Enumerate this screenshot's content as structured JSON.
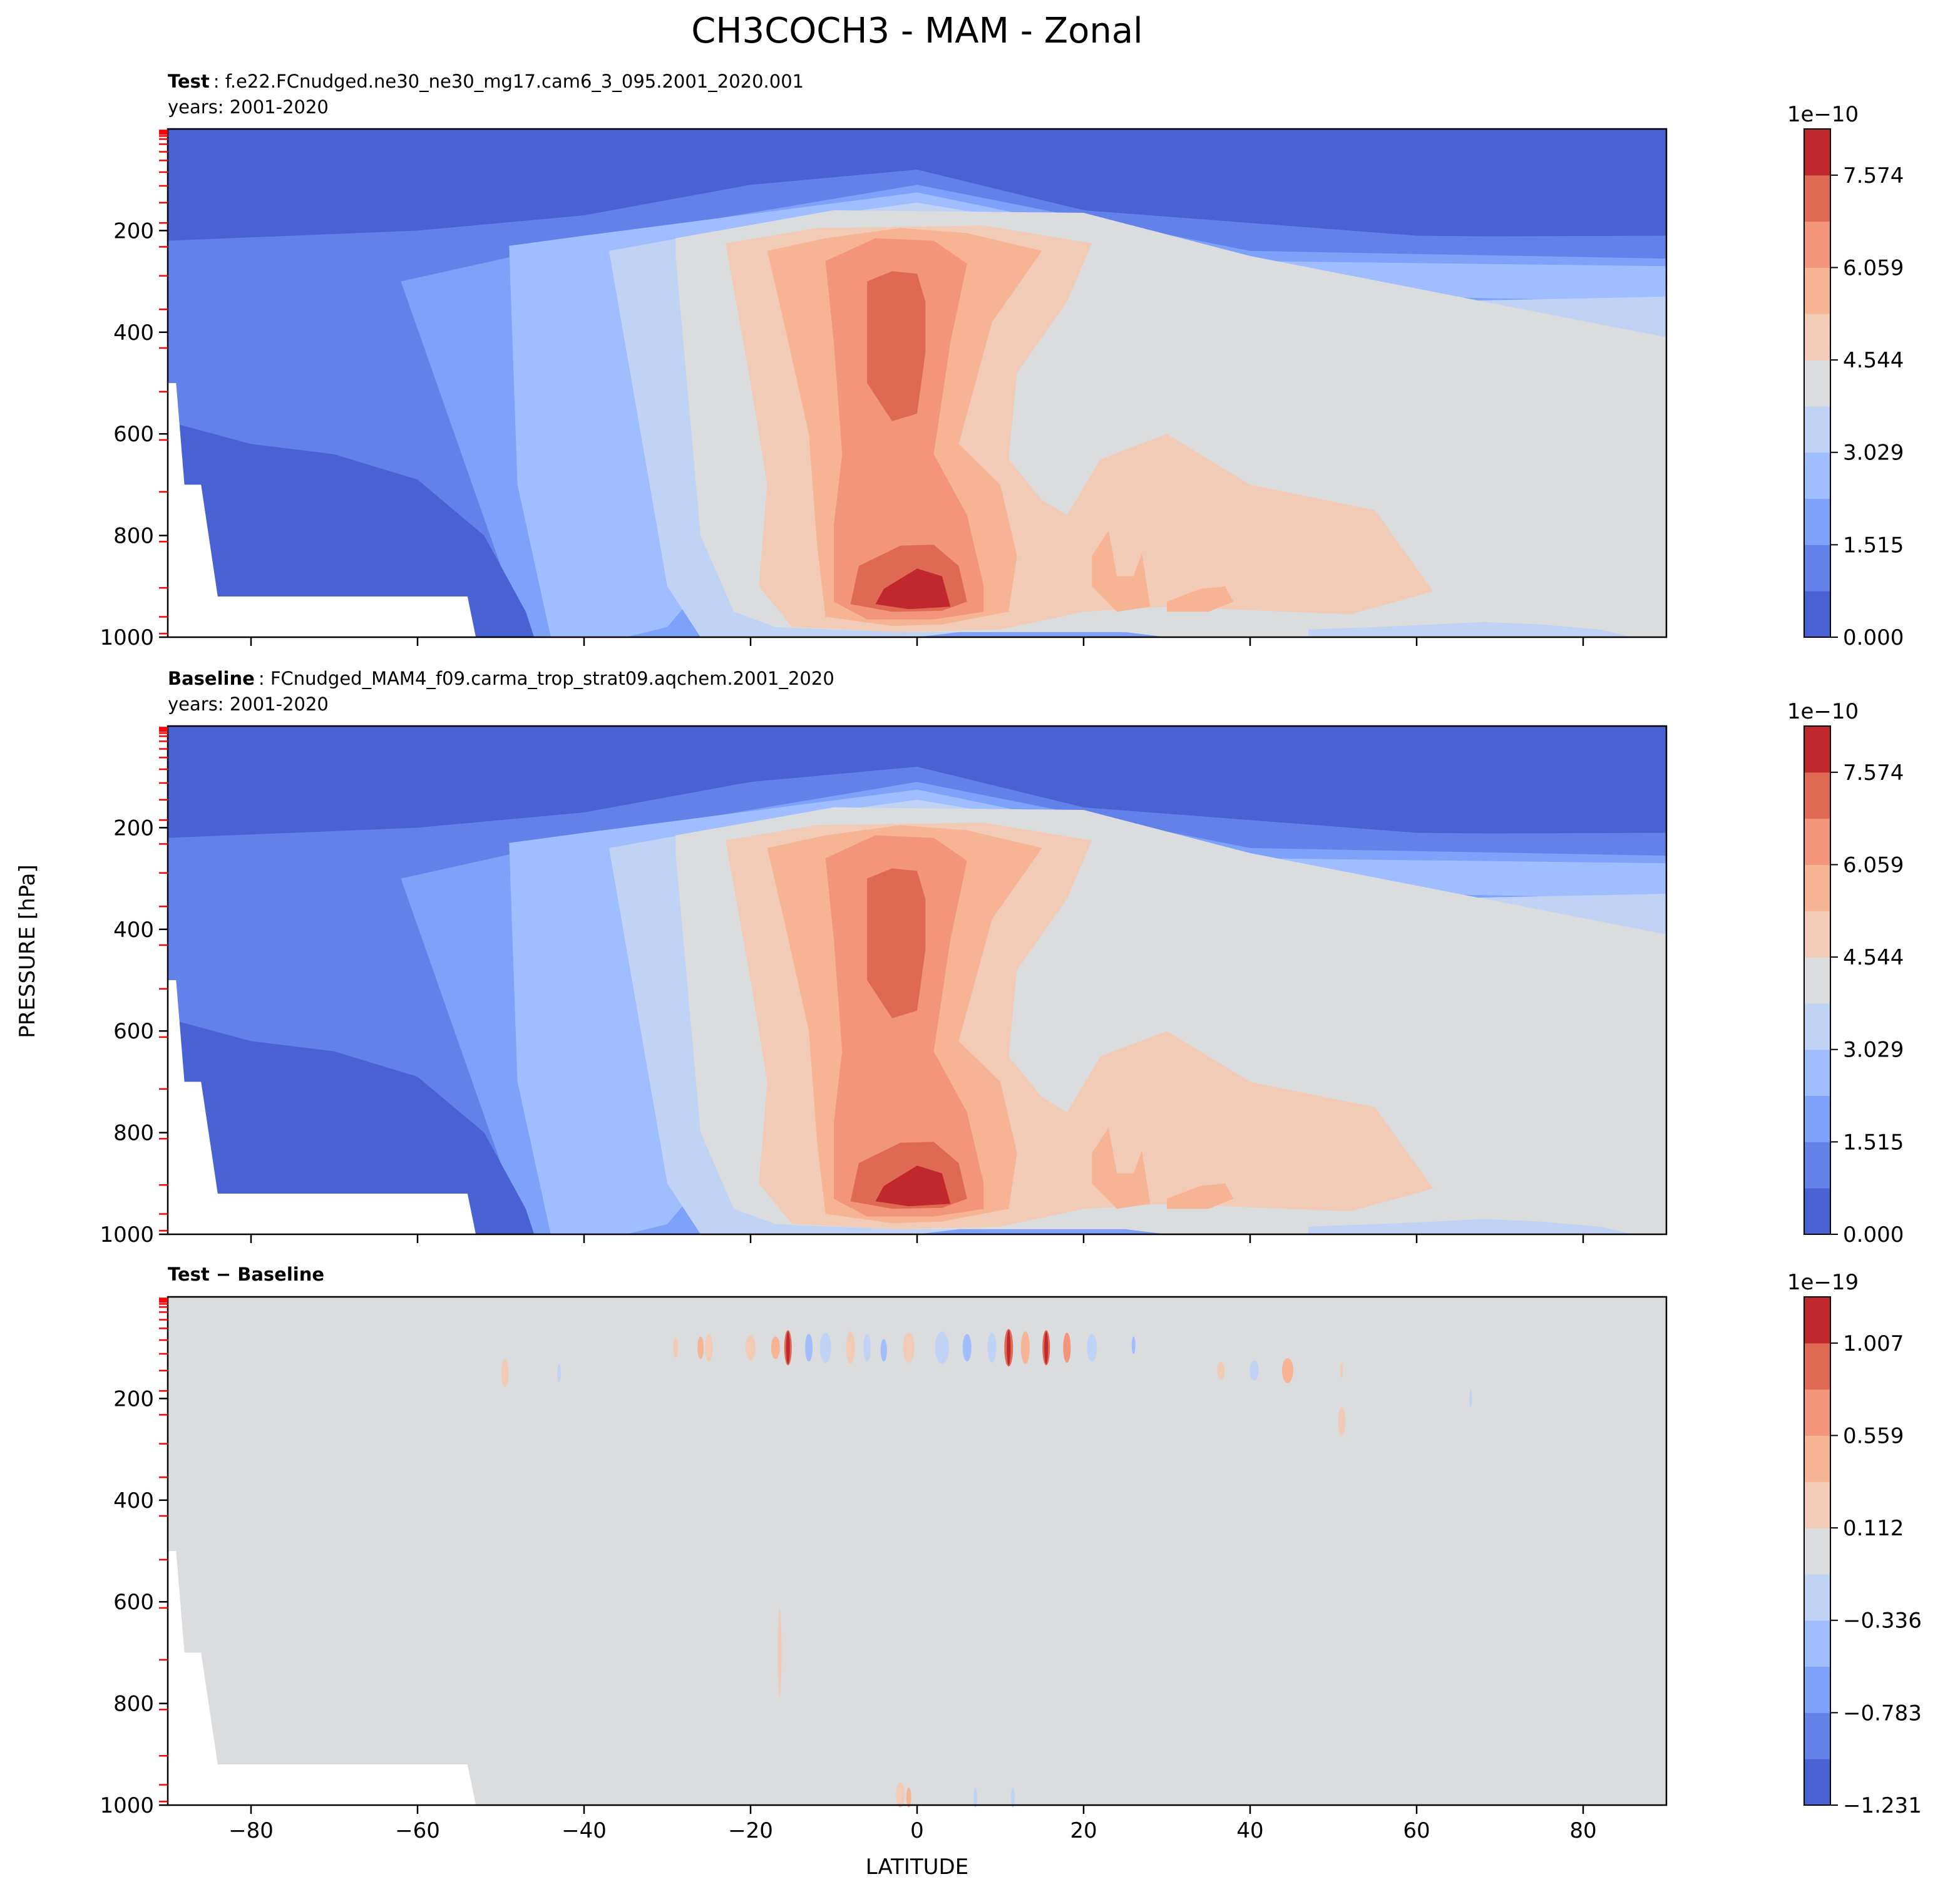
{
  "figure": {
    "title": "CH3COCH3 - MAM - Zonal",
    "ylabel": "PRESSURE [hPa]",
    "xlabel": "LATITUDE"
  },
  "colors": {
    "levels": [
      "#4961d2",
      "#6282ea",
      "#7ea1f9",
      "#a0beff",
      "#c0d3f5",
      "#dbdcde",
      "#f2cbb7",
      "#f6b495",
      "#f2957b",
      "#de6a54",
      "#c0282d"
    ],
    "background": "#dbdcde",
    "mask": "#ffffff",
    "tick_marks": "#ff0000"
  },
  "chart_data": [
    {
      "type": "contour",
      "panel": "test",
      "label_bold": "Test",
      "label_text": "f.e22.FCnudged.ne30_ne30_mg17.cam6_3_095.2001_2020.001",
      "years": "years: 2001-2020",
      "xlim": [
        -90,
        90
      ],
      "ylim": [
        1000,
        0
      ],
      "xticks": [
        "−80",
        "−60",
        "−40",
        "−20",
        "0",
        "20",
        "40",
        "60",
        "80"
      ],
      "yticks": [
        "200",
        "400",
        "600",
        "800",
        "1000"
      ],
      "show_xtick_labels": false,
      "colorbar": {
        "scale_label": "1e−10",
        "ticks": [
          "0.000",
          "1.515",
          "3.029",
          "4.544",
          "6.059",
          "7.574"
        ],
        "levels_count": 11
      }
    },
    {
      "type": "contour",
      "panel": "baseline",
      "label_bold": "Baseline",
      "label_text": "FCnudged_MAM4_f09.carma_trop_strat09.aqchem.2001_2020",
      "years": "years: 2001-2020",
      "xlim": [
        -90,
        90
      ],
      "ylim": [
        1000,
        0
      ],
      "xticks": [
        "−80",
        "−60",
        "−40",
        "−20",
        "0",
        "20",
        "40",
        "60",
        "80"
      ],
      "yticks": [
        "200",
        "400",
        "600",
        "800",
        "1000"
      ],
      "show_xtick_labels": false,
      "colorbar": {
        "scale_label": "1e−10",
        "ticks": [
          "0.000",
          "1.515",
          "3.029",
          "4.544",
          "6.059",
          "7.574"
        ],
        "levels_count": 11
      }
    },
    {
      "type": "contour",
      "panel": "difference",
      "label_bold": "Test − Baseline",
      "xlim": [
        -90,
        90
      ],
      "ylim": [
        1000,
        0
      ],
      "xticks": [
        "−80",
        "−60",
        "−40",
        "−20",
        "0",
        "20",
        "40",
        "60",
        "80"
      ],
      "yticks": [
        "200",
        "400",
        "600",
        "800",
        "1000"
      ],
      "show_xtick_labels": true,
      "colorbar": {
        "scale_label": "1e−19",
        "ticks": [
          "−1.231",
          "−0.783",
          "−0.336",
          "0.112",
          "0.559",
          "1.007"
        ],
        "levels_count": 11
      }
    }
  ]
}
